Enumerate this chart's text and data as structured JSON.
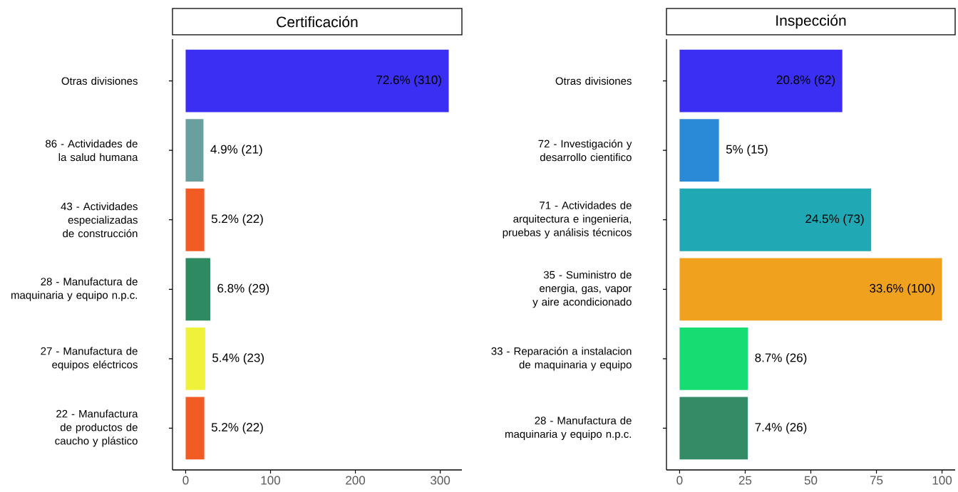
{
  "chart_data": [
    {
      "type": "bar",
      "orientation": "horizontal",
      "title": "Certificación",
      "categories": [
        "Otras divisiones",
        "86 - Actividades de la salud humana",
        "43 - Actividades especializadas de construcción",
        "28 - Manufactura de maquinaria y equipo n.p.c.",
        "27 - Manufactura de equipos eléctricos",
        "22 - Manufactura de productos de caucho y plástico"
      ],
      "values": [
        310,
        21,
        22,
        29,
        23,
        22
      ],
      "colors": [
        "#3a2ff2",
        "#6a9fa0",
        "#f25c24",
        "#2e8a60",
        "#eef23a",
        "#f25c24"
      ],
      "value_labels": [
        "72.6% (310)",
        "4.9% (21)",
        "5.2% (22)",
        "6.8% (29)",
        "5.4% (23)",
        "5.2% (22)"
      ],
      "xlim": [
        -15.5,
        325.5
      ],
      "xticks": [
        0,
        100,
        200,
        300
      ]
    },
    {
      "type": "bar",
      "orientation": "horizontal",
      "title": "Inspección",
      "categories": [
        "Otras divisiones",
        "72 - Investigación y desarrollo cientifico",
        "71 - Actividades de arquitectura e ingenieria, pruebas y análisis técnicos",
        "35 - Suministro de energia, gas, vapor y aire acondicionado",
        "33 - Reparación a instalacion de maquinaria y equipo",
        "28 - Manufactura de maquinaria y equipo n.p.c."
      ],
      "values": [
        62,
        15,
        73,
        100,
        26,
        26
      ],
      "colors": [
        "#3a2ff2",
        "#2b8ad8",
        "#20a9b4",
        "#f0a11e",
        "#16dc72",
        "#348c66"
      ],
      "value_labels": [
        "20.8% (62)",
        "5% (15)",
        "24.5% (73)",
        "33.6% (100)",
        "8.7% (26)",
        "7.4% (26)"
      ],
      "xlim": [
        -5,
        105
      ],
      "xticks": [
        0,
        25,
        50,
        75,
        100
      ]
    }
  ]
}
